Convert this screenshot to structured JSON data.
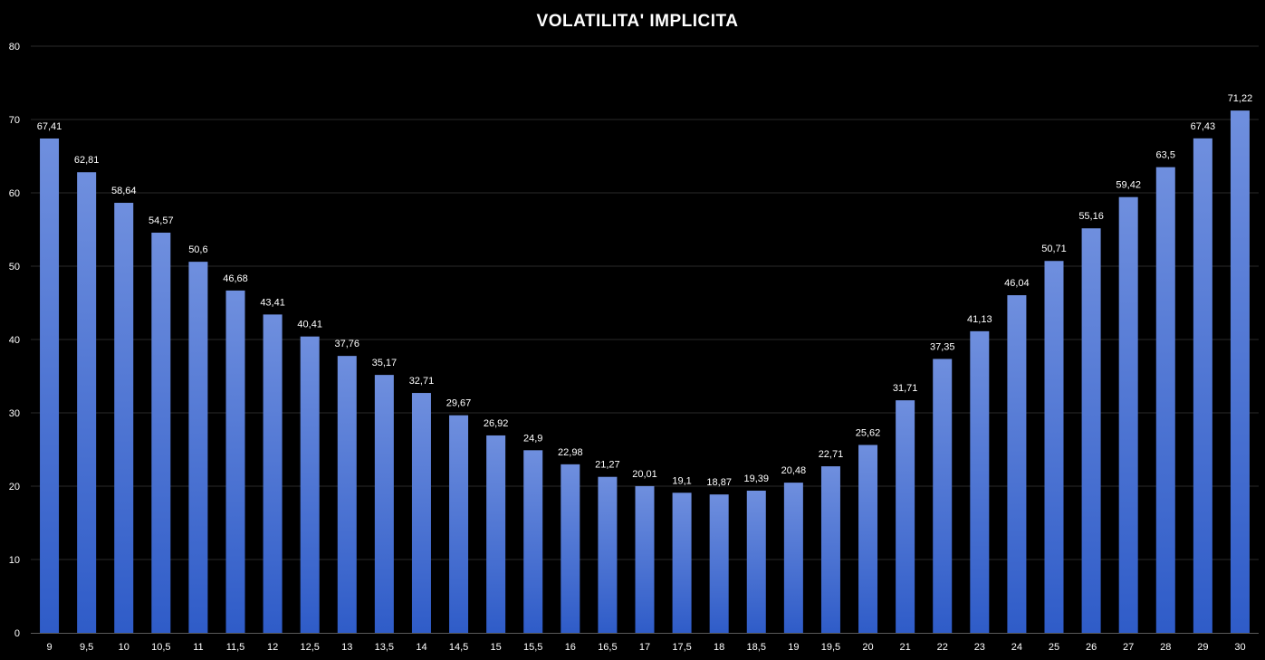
{
  "chart_data": {
    "type": "bar",
    "title": "VOLATILITA' IMPLICITA",
    "xlabel": "",
    "ylabel": "",
    "ylim": [
      0,
      80
    ],
    "yticks": [
      "0",
      "10",
      "20",
      "30",
      "40",
      "50",
      "60",
      "70",
      "80"
    ],
    "ytick_values": [
      0,
      10,
      20,
      30,
      40,
      50,
      60,
      70,
      80
    ],
    "grid": true,
    "legend": "none",
    "colors": {
      "background": "#000000",
      "bar_top": "#6f8fde",
      "bar_bottom": "#2f5cc8",
      "text": "#ffffff"
    },
    "categories": [
      "9",
      "9,5",
      "10",
      "10,5",
      "11",
      "11,5",
      "12",
      "12,5",
      "13",
      "13,5",
      "14",
      "14,5",
      "15",
      "15,5",
      "16",
      "16,5",
      "17",
      "17,5",
      "18",
      "18,5",
      "19",
      "19,5",
      "20",
      "21",
      "22",
      "23",
      "24",
      "25",
      "26",
      "27",
      "28",
      "29",
      "30"
    ],
    "values": [
      67.41,
      62.81,
      58.64,
      54.57,
      50.6,
      46.68,
      43.41,
      40.41,
      37.76,
      35.17,
      32.71,
      29.67,
      26.92,
      24.9,
      22.98,
      21.27,
      20.01,
      19.1,
      18.87,
      19.39,
      20.48,
      22.71,
      25.62,
      31.71,
      37.35,
      41.13,
      46.04,
      50.71,
      55.16,
      59.42,
      63.5,
      67.43,
      71.22
    ],
    "data_labels": [
      "67,41",
      "62,81",
      "58,64",
      "54,57",
      "50,6",
      "46,68",
      "43,41",
      "40,41",
      "37,76",
      "35,17",
      "32,71",
      "29,67",
      "26,92",
      "24,9",
      "22,98",
      "21,27",
      "20,01",
      "19,1",
      "18,87",
      "19,39",
      "20,48",
      "22,71",
      "25,62",
      "31,71",
      "37,35",
      "41,13",
      "46,04",
      "50,71",
      "55,16",
      "59,42",
      "63,5",
      "67,43",
      "71,22"
    ]
  }
}
